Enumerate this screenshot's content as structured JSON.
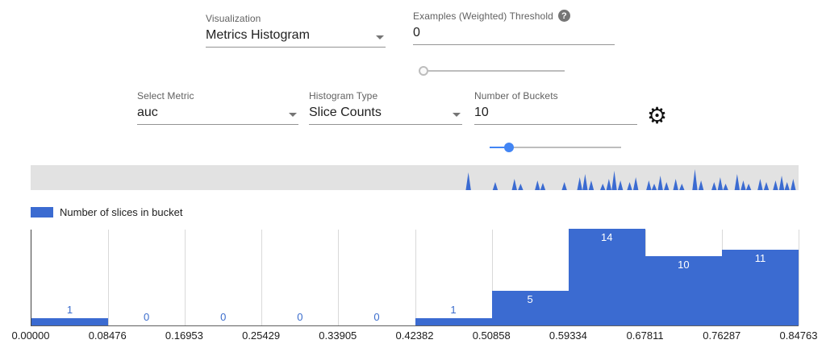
{
  "controls": {
    "visualization": {
      "label": "Visualization",
      "value": "Metrics Histogram"
    },
    "threshold": {
      "label": "Examples (Weighted) Threshold",
      "value": "0",
      "help": "?",
      "slider_percent": 3
    },
    "metric": {
      "label": "Select Metric",
      "value": "auc"
    },
    "histogram_type": {
      "label": "Histogram Type",
      "value": "Slice Counts"
    },
    "buckets": {
      "label": "Number of Buckets",
      "value": "10",
      "slider_percent": 15
    }
  },
  "legend": {
    "label": "Number of slices in bucket"
  },
  "colors": {
    "bar": "#3b6bd1",
    "label_outside": "#3a6ccc",
    "label_inside": "#ffffff"
  },
  "chart_data": {
    "type": "bar",
    "title": "Number of slices in bucket",
    "xlabel": "",
    "ylabel": "",
    "categories": [
      "0.00000-0.08476",
      "0.08476-0.16953",
      "0.16953-0.25429",
      "0.25429-0.33905",
      "0.33905-0.42382",
      "0.42382-0.50858",
      "0.50858-0.59334",
      "0.59334-0.67811",
      "0.67811-0.76287",
      "0.76287-0.84763"
    ],
    "values": [
      1,
      0,
      0,
      0,
      0,
      1,
      5,
      14,
      10,
      11
    ],
    "ticks": [
      "0.00000",
      "0.08476",
      "0.16953",
      "0.25429",
      "0.33905",
      "0.42382",
      "0.50858",
      "0.59334",
      "0.67811",
      "0.76287",
      "0.84763"
    ],
    "ylim": [
      0,
      14
    ],
    "grid": true,
    "legend_position": "top-left"
  },
  "minimap": {
    "spikes": [
      [
        57.0,
        22
      ],
      [
        60.5,
        10
      ],
      [
        63.0,
        14
      ],
      [
        63.8,
        8
      ],
      [
        66.0,
        12
      ],
      [
        66.7,
        9
      ],
      [
        69.5,
        10
      ],
      [
        71.5,
        16
      ],
      [
        72.2,
        20
      ],
      [
        73.0,
        12
      ],
      [
        74.5,
        8
      ],
      [
        75.3,
        14
      ],
      [
        76.0,
        24
      ],
      [
        76.8,
        12
      ],
      [
        78.0,
        10
      ],
      [
        78.8,
        16
      ],
      [
        80.5,
        12
      ],
      [
        81.2,
        8
      ],
      [
        82.0,
        18
      ],
      [
        82.8,
        10
      ],
      [
        84.0,
        14
      ],
      [
        84.8,
        8
      ],
      [
        86.5,
        26
      ],
      [
        87.3,
        12
      ],
      [
        89.0,
        10
      ],
      [
        89.8,
        16
      ],
      [
        90.5,
        8
      ],
      [
        92.0,
        20
      ],
      [
        92.8,
        12
      ],
      [
        93.5,
        8
      ],
      [
        95.0,
        14
      ],
      [
        95.8,
        10
      ],
      [
        97.0,
        12
      ],
      [
        97.8,
        18
      ],
      [
        98.5,
        10
      ],
      [
        99.3,
        14
      ]
    ]
  }
}
